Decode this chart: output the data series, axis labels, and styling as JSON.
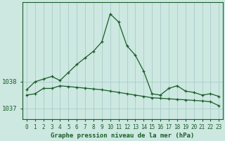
{
  "title": "Graphe pression niveau de la mer (hPa)",
  "background_color": "#cce8e0",
  "grid_color": "#aacccc",
  "line_color": "#1a5c2a",
  "x_ticks": [
    0,
    1,
    2,
    3,
    4,
    5,
    6,
    7,
    8,
    9,
    10,
    11,
    12,
    13,
    14,
    15,
    16,
    17,
    18,
    19,
    20,
    21,
    22,
    23
  ],
  "ylim": [
    1036.6,
    1041.0
  ],
  "yticks": [
    1037,
    1038
  ],
  "series1": [
    1037.7,
    1038.0,
    1038.1,
    1038.2,
    1038.05,
    1038.35,
    1038.65,
    1038.9,
    1039.15,
    1039.5,
    1040.55,
    1040.25,
    1039.35,
    1039.0,
    1038.4,
    1037.55,
    1037.5,
    1037.75,
    1037.85,
    1037.65,
    1037.6,
    1037.5,
    1037.55,
    1037.45
  ],
  "series2": [
    1037.5,
    1037.55,
    1037.75,
    1037.75,
    1037.85,
    1037.82,
    1037.79,
    1037.76,
    1037.73,
    1037.7,
    1037.65,
    1037.6,
    1037.55,
    1037.5,
    1037.45,
    1037.4,
    1037.38,
    1037.36,
    1037.34,
    1037.32,
    1037.3,
    1037.28,
    1037.25,
    1037.1
  ],
  "tick_fontsize": 5.5,
  "label_fontsize": 6.5
}
